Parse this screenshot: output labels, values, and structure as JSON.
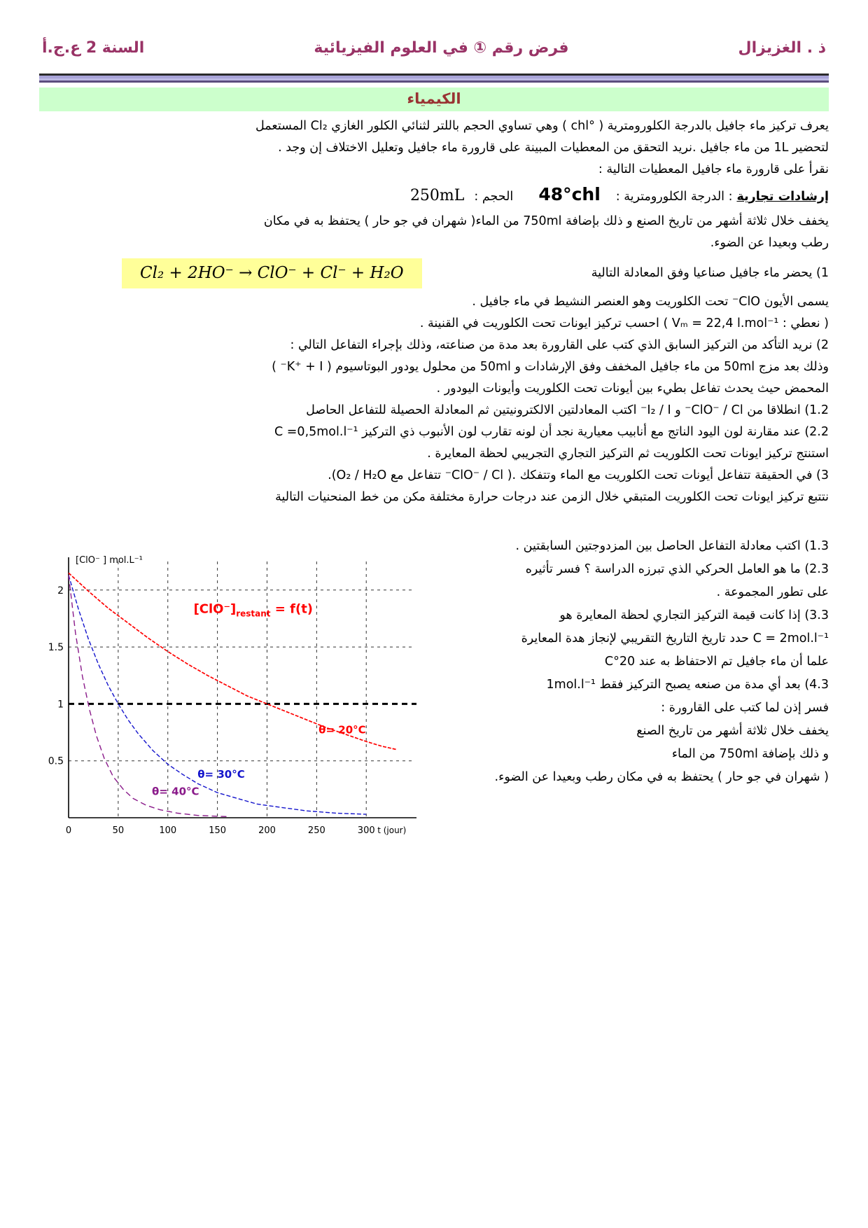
{
  "header": {
    "teacher": "ذ . الغزيزال",
    "title": "فرض رقم  ①  في العلوم الفيزيائية",
    "year": "السنة 2 ع.ج.أ"
  },
  "section_title": "الكيمياء",
  "intro": {
    "line1": "يعرف تركيز ماء جافيل بالدرجة الكلورومترية ( °chl ) وهي تساوي الحجم باللتر لثنائي الكلور الغازي Cl₂ المستعمل",
    "line2": "لتحضير 1L من ماء جافيل .نريد التحقق من المعطيات المبينة على قارورة ماء جافيل وتعليل الاختلاف إن وجد .",
    "line3": "نقرأ على قارورة ماء جافيل المعطيات التالية :"
  },
  "label_info": {
    "heading": "إرشادات تجارية",
    "degree_label": ": الدرجة الكلورومترية  :",
    "degree_value": "48°chl",
    "volume_label": "الحجم :",
    "volume_value": "250mL",
    "note1": "يخفف خلال ثلاثة أشهر من تاريخ الصنع و ذلك بإضافة 750ml من الماء( شهران في جو حار ) يحتفظ به في مكان",
    "note2": "رطب وبعيدا عن الضوء."
  },
  "q1": {
    "intro": "1) يحضر ماء جافيل صناعيا وفق المعادلة التالية",
    "equation": "Cl₂ + 2HO⁻ → ClO⁻ + Cl⁻ + H₂O",
    "line2": "يسمى الأيون ClO⁻ تحت الكلوريت  وهو العنصر النشيط في ماء جافيل .",
    "line3": "( نعطي : Vₘ = 22,4 l.mol⁻¹ ) احسب تركيز ايونات تحت الكلوريت في القنينة ."
  },
  "q2": {
    "line1": "2)  نريد التأكد من التركيز السابق الذي كتب على القارورة بعد مدة من صناعته، وذلك بإجراء التفاعل التالي :",
    "line2": "وذلك بعد مزج 50ml من ماء جافيل المخفف وفق الإرشادات  و 50ml من محلول يودور البوتاسيوم ( K⁺ + I⁻ )",
    "line3": "المحمض حيث يحدث تفاعل بطيء بين أيونات تحت الكلوريت وأيونات اليودور .",
    "q12": "1.2) انطلاقا من   ClO⁻ / Cl⁻   و  I₂ / I⁻  اكتب المعادلتين الالكترونيتين ثم المعادلة الحصيلة للتفاعل الحاصل",
    "q22": "2.2) عند  مقارنة لون اليود الناتج مع أنابيب معيارية نجد أن لونه تقارب لون الأنبوب ذي التركيز C =0,5mol.l⁻¹",
    "q22b": "استنتج تركيز ايونات تحت الكلوريت  ثم التركيز التجاري التجريبي لحظة المعايرة ."
  },
  "q3": {
    "line1": "3) في الحقيقة  تتفاعل أيونات تحت الكلوريت  مع الماء وتتفكك .(  ClO⁻ / Cl⁻   تتفاعل مع O₂ / H₂O).",
    "line2": "نتتبع تركيز ايونات تحت الكلوريت المتبقي خلال الزمن عند درجات حرارة مختلفة مكن من خط المنحنيات التالية",
    "q13a": "1.3) اكتب معادلة التفاعل الحاصل بين المزدوجتين السابقتين .",
    "q23a": "2.3) ما هو العامل الحركي الذي تبرزه الدراسة ؟ فسر تأثيره",
    "q23b": "على تطور المجموعة .",
    "q33a": "3.3) إذا كانت قيمة التركيز التجاري لحظة المعايرة هو",
    "q33b": "C = 2mol.l⁻¹  حدد تاريخ التاريخ التقريبي لإنجاز هدة المعايرة",
    "q33c": "علما أن ماء جافيل تم الاحتفاظ به عند 20°C",
    "q43a": "4.3) بعد أي مدة من صنعه يصبح التركيز فقط  1mol.l⁻¹",
    "q43b": "فسر إذن لما كتب على القارورة :",
    "q43c": "يخفف خلال ثلاثة أشهر من تاريخ الصنع",
    "q43d": "و ذلك بإضافة 750ml من الماء",
    "q43e": "( شهران في جو حار ) يحتفظ به في مكان رطب وبعيدا عن الضوء."
  },
  "chart_data": {
    "type": "line",
    "title": {
      "prefix": "[ClO⁻]",
      "sub": "restant",
      "suffix": " = f(t)",
      "color": "#ff0000",
      "pos": [
        126,
        1.8
      ]
    },
    "ylabel": "[ClO⁻ ] mol.L⁻¹",
    "xlabel": "t (jour)",
    "xticks": [
      0,
      50,
      100,
      150,
      200,
      250,
      300
    ],
    "yticks": [
      0.5,
      1,
      1.5,
      2
    ],
    "xlim": [
      0,
      345
    ],
    "ylim": [
      0,
      2.3
    ],
    "grid": "dashed",
    "highlight_y": 1,
    "series": [
      {
        "name": "θ= 20°C",
        "color": "#ff0000",
        "dash": "5 2",
        "width": 1.7,
        "label_pos": [
          252,
          0.74
        ],
        "points": [
          [
            0,
            2.15
          ],
          [
            20,
            1.99
          ],
          [
            40,
            1.84
          ],
          [
            60,
            1.71
          ],
          [
            80,
            1.58
          ],
          [
            100,
            1.46
          ],
          [
            120,
            1.35
          ],
          [
            140,
            1.25
          ],
          [
            160,
            1.16
          ],
          [
            180,
            1.07
          ],
          [
            200,
            1.0
          ],
          [
            220,
            0.93
          ],
          [
            240,
            0.86
          ],
          [
            260,
            0.79
          ],
          [
            280,
            0.73
          ],
          [
            300,
            0.67
          ],
          [
            315,
            0.63
          ],
          [
            330,
            0.6
          ]
        ]
      },
      {
        "name": "θ= 30°C",
        "color": "#1414cc",
        "dash": "6 3",
        "width": 1.4,
        "label_pos": [
          130,
          0.35
        ],
        "points": [
          [
            0,
            2.13
          ],
          [
            10,
            1.83
          ],
          [
            20,
            1.57
          ],
          [
            30,
            1.35
          ],
          [
            40,
            1.16
          ],
          [
            50,
            1.0
          ],
          [
            60,
            0.86
          ],
          [
            70,
            0.74
          ],
          [
            85,
            0.59
          ],
          [
            100,
            0.47
          ],
          [
            115,
            0.38
          ],
          [
            130,
            0.3
          ],
          [
            150,
            0.22
          ],
          [
            170,
            0.17
          ],
          [
            190,
            0.12
          ],
          [
            215,
            0.09
          ],
          [
            240,
            0.06
          ],
          [
            270,
            0.04
          ],
          [
            300,
            0.03
          ]
        ]
      },
      {
        "name": "θ= 40°C",
        "color": "#8a1a8a",
        "dash": "8 5",
        "width": 1.4,
        "label_pos": [
          84,
          0.2
        ],
        "points": [
          [
            0,
            2.13
          ],
          [
            7,
            1.62
          ],
          [
            14,
            1.24
          ],
          [
            21,
            0.95
          ],
          [
            28,
            0.72
          ],
          [
            36,
            0.52
          ],
          [
            45,
            0.36
          ],
          [
            55,
            0.25
          ],
          [
            65,
            0.17
          ],
          [
            78,
            0.11
          ],
          [
            92,
            0.07
          ],
          [
            110,
            0.04
          ],
          [
            130,
            0.02
          ],
          [
            150,
            0.013
          ],
          [
            162,
            0.01
          ]
        ]
      }
    ]
  }
}
